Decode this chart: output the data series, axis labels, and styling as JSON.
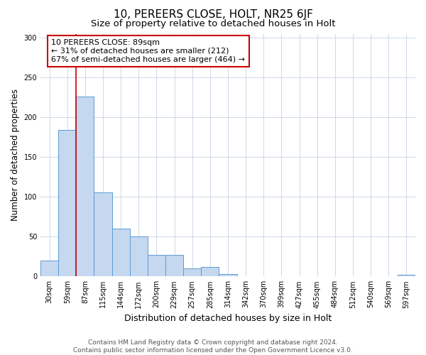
{
  "title1": "10, PEREERS CLOSE, HOLT, NR25 6JF",
  "title2": "Size of property relative to detached houses in Holt",
  "xlabel": "Distribution of detached houses by size in Holt",
  "ylabel": "Number of detached properties",
  "bin_labels": [
    "30sqm",
    "59sqm",
    "87sqm",
    "115sqm",
    "144sqm",
    "172sqm",
    "200sqm",
    "229sqm",
    "257sqm",
    "285sqm",
    "314sqm",
    "342sqm",
    "370sqm",
    "399sqm",
    "427sqm",
    "455sqm",
    "484sqm",
    "512sqm",
    "540sqm",
    "569sqm",
    "597sqm"
  ],
  "bar_values": [
    20,
    184,
    226,
    106,
    60,
    50,
    27,
    27,
    10,
    12,
    3,
    0,
    0,
    0,
    0,
    0,
    0,
    0,
    0,
    0,
    2
  ],
  "bar_color": "#c5d8f0",
  "bar_edge_color": "#5b9bd5",
  "property_line_color": "#cc0000",
  "annotation_text": "10 PEREERS CLOSE: 89sqm\n← 31% of detached houses are smaller (212)\n67% of semi-detached houses are larger (464) →",
  "annotation_box_color": "#ffffff",
  "annotation_box_edge_color": "#cc0000",
  "ylim": [
    0,
    305
  ],
  "yticks": [
    0,
    50,
    100,
    150,
    200,
    250,
    300
  ],
  "footer_text": "Contains HM Land Registry data © Crown copyright and database right 2024.\nContains public sector information licensed under the Open Government Licence v3.0.",
  "background_color": "#ffffff",
  "grid_color": "#cdd8ea",
  "title1_fontsize": 11,
  "title2_fontsize": 9.5,
  "xlabel_fontsize": 9,
  "ylabel_fontsize": 8.5,
  "tick_fontsize": 7,
  "annotation_fontsize": 8,
  "footer_fontsize": 6.5
}
